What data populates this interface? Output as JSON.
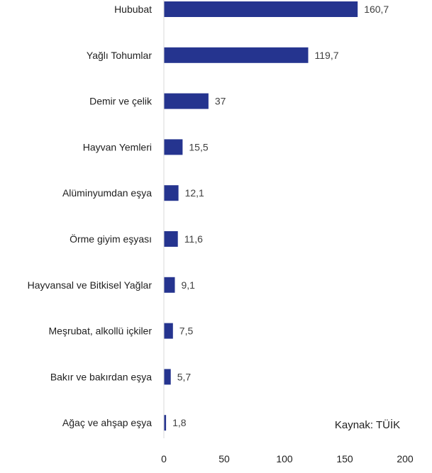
{
  "chart_data": {
    "type": "bar",
    "orientation": "horizontal",
    "categories": [
      "Hububat",
      "Yağlı Tohumlar",
      "Demir ve çelik",
      "Hayvan Yemleri",
      "Alüminyumdan eşya",
      "Örme giyim eşyası",
      "Hayvansal ve Bitkisel Yağlar",
      "Meşrubat, alkollü içkiler",
      "Bakır ve bakırdan eşya",
      "Ağaç ve ahşap eşya"
    ],
    "values": [
      160.7,
      119.7,
      37,
      15.5,
      12.1,
      11.6,
      9.1,
      7.5,
      5.7,
      1.8
    ],
    "value_labels": [
      "160,7",
      "119,7",
      "37",
      "15,5",
      "12,1",
      "11,6",
      "9,1",
      "7,5",
      "5,7",
      "1,8"
    ],
    "xlim": [
      0,
      200
    ],
    "xticks": [
      0,
      50,
      100,
      150,
      200
    ],
    "xtick_labels": [
      "0",
      "50",
      "100",
      "150",
      "200"
    ],
    "grid": false,
    "bar_color": "#25348F",
    "annotation": "Kaynak: TÜİK"
  }
}
